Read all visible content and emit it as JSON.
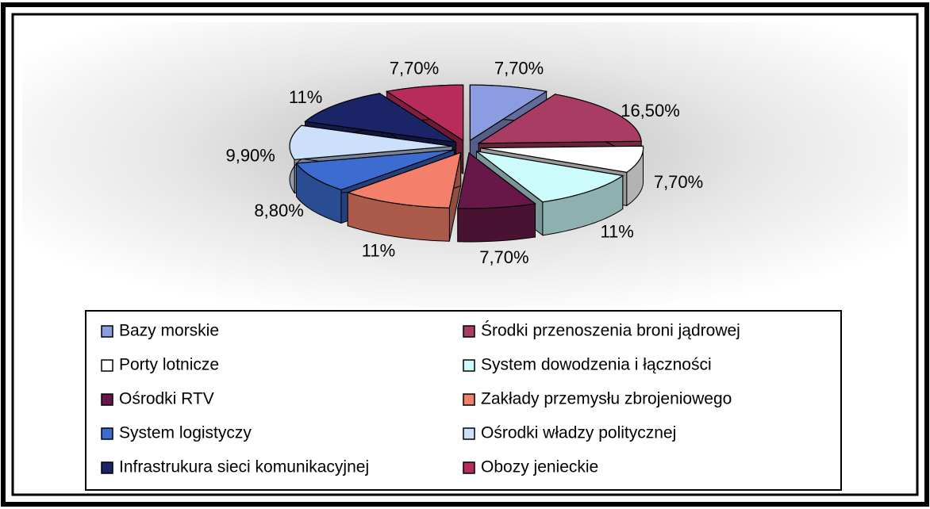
{
  "chart_data": {
    "type": "pie",
    "categories": [
      "Bazy morskie",
      "Środki przenoszenia broni jądrowej",
      "Porty lotnicze",
      "System dowodzenia i łączności",
      "Ośrodki RTV",
      "Zakłady przemysłu zbrojeniowego",
      "System logistyczy",
      "Ośrodki władzy politycznej",
      "Infrastrukura sieci komunikacyjnej",
      "Obozy jenieckie"
    ],
    "values": [
      7.7,
      16.5,
      7.7,
      11,
      7.7,
      11,
      8.8,
      9.9,
      11,
      7.7
    ],
    "value_labels": [
      "7,70%",
      "16,50%",
      "7,70%",
      "11%",
      "7,70%",
      "11%",
      "8,80%",
      "9,90%",
      "11%",
      "7,70%"
    ],
    "colors": [
      "#8c9ce0",
      "#a83c64",
      "#ffffff",
      "#ccfcfc",
      "#681848",
      "#f4806c",
      "#3c6cd0",
      "#cce0fc",
      "#1c2468",
      "#b82c5c"
    ],
    "legend": "bottom"
  }
}
